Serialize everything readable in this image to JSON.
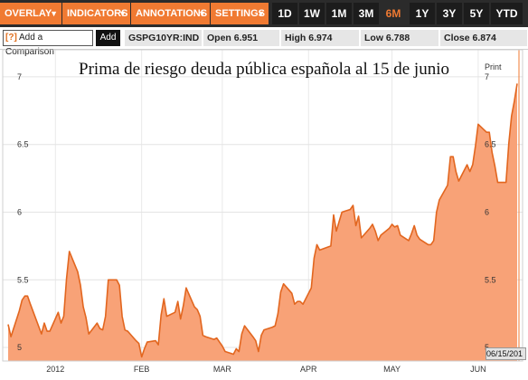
{
  "toolbar": {
    "menus": [
      "OVERLAY",
      "INDICATORS",
      "ANNOTATIONS",
      "SETTINGS"
    ],
    "periods": [
      "1D",
      "1W",
      "1M",
      "3M",
      "6M",
      "1Y",
      "3Y",
      "5Y",
      "YTD"
    ],
    "active_period": "6M"
  },
  "infobar": {
    "compare_icon": "[?]",
    "compare_placeholder": "Add a Comparison",
    "add_label": "Add",
    "ticker": "GSPG10YR:IND",
    "open_label": "Open",
    "open_value": "6.951",
    "high_label": "High",
    "high_value": "6.974",
    "low_label": "Low",
    "low_value": "6.788",
    "close_label": "Close",
    "close_value": "6.874"
  },
  "chart_links": {
    "print": "Print",
    "date_stamp": "06/15/201"
  },
  "colors": {
    "accent": "#f07a32",
    "area_fill": "#f8a277",
    "area_line": "#e2661f",
    "toolbar_bg": "#2b2b2b"
  },
  "chart_data": {
    "type": "area",
    "title": "Prima de riesgo deuda pública española al 15 de junio",
    "xlabel": "",
    "ylabel": "",
    "ylim": [
      4.9,
      7.2
    ],
    "yticks": [
      5,
      5.5,
      6,
      6.5,
      7
    ],
    "ytick_labels": [
      "5",
      "5.5",
      "6",
      "6.5",
      "7"
    ],
    "xtick_labels": [
      "2012",
      "FEB",
      "MAR",
      "APR",
      "MAY",
      "JUN"
    ],
    "xtick_dates": [
      "2012-01-01",
      "2012-02-01",
      "2012-03-01",
      "2012-04-01",
      "2012-05-01",
      "2012-06-01"
    ],
    "x_range": [
      "2011-12-15",
      "2012-06-15"
    ],
    "series": [
      {
        "x": [
          "2011-12-15",
          "2011-12-16",
          "2011-12-19",
          "2011-12-20",
          "2011-12-21",
          "2011-12-22",
          "2011-12-23",
          "2011-12-27",
          "2011-12-28",
          "2011-12-29",
          "2011-12-30",
          "2012-01-02",
          "2012-01-03",
          "2012-01-04",
          "2012-01-05",
          "2012-01-06",
          "2012-01-09",
          "2012-01-10",
          "2012-01-11",
          "2012-01-12",
          "2012-01-13",
          "2012-01-16",
          "2012-01-17",
          "2012-01-18",
          "2012-01-19",
          "2012-01-20",
          "2012-01-23",
          "2012-01-24",
          "2012-01-25",
          "2012-01-26",
          "2012-01-27",
          "2012-01-30",
          "2012-01-31",
          "2012-02-01",
          "2012-02-02",
          "2012-02-03",
          "2012-02-06",
          "2012-02-07",
          "2012-02-08",
          "2012-02-09",
          "2012-02-10",
          "2012-02-13",
          "2012-02-14",
          "2012-02-15",
          "2012-02-16",
          "2012-02-17",
          "2012-02-20",
          "2012-02-21",
          "2012-02-22",
          "2012-02-23",
          "2012-02-24",
          "2012-02-27",
          "2012-02-28",
          "2012-02-29",
          "2012-03-01",
          "2012-03-02",
          "2012-03-05",
          "2012-03-06",
          "2012-03-07",
          "2012-03-08",
          "2012-03-09",
          "2012-03-12",
          "2012-03-13",
          "2012-03-14",
          "2012-03-15",
          "2012-03-16",
          "2012-03-19",
          "2012-03-20",
          "2012-03-21",
          "2012-03-22",
          "2012-03-23",
          "2012-03-26",
          "2012-03-27",
          "2012-03-28",
          "2012-03-29",
          "2012-03-30",
          "2012-04-02",
          "2012-04-03",
          "2012-04-04",
          "2012-04-05",
          "2012-04-09",
          "2012-04-10",
          "2012-04-11",
          "2012-04-12",
          "2012-04-13",
          "2012-04-16",
          "2012-04-17",
          "2012-04-18",
          "2012-04-19",
          "2012-04-20",
          "2012-04-23",
          "2012-04-24",
          "2012-04-25",
          "2012-04-26",
          "2012-04-27",
          "2012-04-30",
          "2012-05-01",
          "2012-05-02",
          "2012-05-03",
          "2012-05-04",
          "2012-05-07",
          "2012-05-08",
          "2012-05-09",
          "2012-05-10",
          "2012-05-11",
          "2012-05-14",
          "2012-05-15",
          "2012-05-16",
          "2012-05-17",
          "2012-05-18",
          "2012-05-21",
          "2012-05-22",
          "2012-05-23",
          "2012-05-24",
          "2012-05-25",
          "2012-05-28",
          "2012-05-29",
          "2012-05-30",
          "2012-05-31",
          "2012-06-01",
          "2012-06-04",
          "2012-06-05",
          "2012-06-06",
          "2012-06-07",
          "2012-06-08",
          "2012-06-11",
          "2012-06-12",
          "2012-06-13",
          "2012-06-14",
          "2012-06-15"
        ],
        "y": [
          5.17,
          5.08,
          5.27,
          5.35,
          5.38,
          5.38,
          5.32,
          5.1,
          5.18,
          5.12,
          5.12,
          5.26,
          5.18,
          5.23,
          5.51,
          5.71,
          5.56,
          5.46,
          5.3,
          5.22,
          5.1,
          5.18,
          5.14,
          5.13,
          5.23,
          5.5,
          5.5,
          5.46,
          5.23,
          5.13,
          5.12,
          5.05,
          5.03,
          4.93,
          4.99,
          5.04,
          5.05,
          5.02,
          5.24,
          5.36,
          5.23,
          5.26,
          5.34,
          5.21,
          5.31,
          5.44,
          5.3,
          5.28,
          5.23,
          5.09,
          5.08,
          5.06,
          5.07,
          5.04,
          5.01,
          4.97,
          4.95,
          4.99,
          4.97,
          5.1,
          5.16,
          5.08,
          5.05,
          4.97,
          5.09,
          5.13,
          5.15,
          5.16,
          5.25,
          5.41,
          5.47,
          5.4,
          5.32,
          5.34,
          5.34,
          5.32,
          5.44,
          5.66,
          5.76,
          5.72,
          5.75,
          5.98,
          5.86,
          5.93,
          6.0,
          6.02,
          6.05,
          5.9,
          5.97,
          5.81,
          5.88,
          5.91,
          5.86,
          5.79,
          5.83,
          5.88,
          5.91,
          5.89,
          5.9,
          5.83,
          5.79,
          5.84,
          5.9,
          5.83,
          5.8,
          5.76,
          5.76,
          5.79,
          6.0,
          6.09,
          6.2,
          6.41,
          6.41,
          6.3,
          6.23,
          6.35,
          6.3,
          6.35,
          6.49,
          6.65,
          6.59,
          6.59,
          6.44,
          6.34,
          6.22,
          6.22,
          6.51,
          6.71,
          6.82,
          6.95
        ]
      }
    ]
  }
}
